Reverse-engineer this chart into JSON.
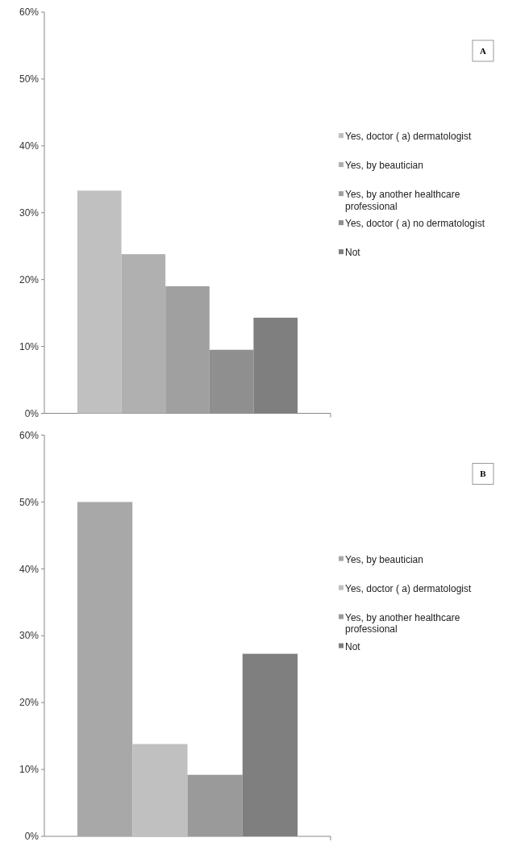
{
  "chart_data": [
    {
      "type": "bar",
      "annotations": [
        "A"
      ],
      "categories": [
        null
      ],
      "series": [
        {
          "name": "Yes, doctor ( a) dermatologist",
          "color": "#c0c0c0",
          "values": [
            33.3
          ]
        },
        {
          "name": "Yes, by beautician",
          "color": "#b0b0b0",
          "values": [
            23.8
          ]
        },
        {
          "name": "Yes, by another healthcare professional",
          "color": "#a0a0a0",
          "values": [
            19.0
          ]
        },
        {
          "name": "Yes, doctor ( a) no dermatologist",
          "color": "#8f8f8f",
          "values": [
            9.5
          ]
        },
        {
          "name": "Not",
          "color": "#7f7f7f",
          "values": [
            14.3
          ]
        }
      ],
      "ylim": [
        0,
        60
      ],
      "yticks": [
        {
          "value": 0,
          "label": "0%"
        },
        {
          "value": 10,
          "label": "10%"
        },
        {
          "value": 20,
          "label": "20%"
        },
        {
          "value": 30,
          "label": "30%"
        },
        {
          "value": 40,
          "label": "40%"
        },
        {
          "value": 50,
          "label": "50%"
        },
        {
          "value": 60,
          "label": "60%"
        }
      ],
      "legend": "right"
    },
    {
      "type": "bar",
      "annotations": [
        "B"
      ],
      "categories": [
        null
      ],
      "series": [
        {
          "name": "Yes, by beautician",
          "color": "#a8a8a8",
          "values": [
            50
          ]
        },
        {
          "name": "Yes, doctor ( a) dermatologist",
          "color": "#c0c0c0",
          "values": [
            13.8
          ]
        },
        {
          "name": "Yes, by another healthcare professional",
          "color": "#9a9a9a",
          "values": [
            9.2
          ]
        },
        {
          "name": "Not",
          "color": "#7f7f7f",
          "values": [
            27.3
          ]
        }
      ],
      "ylim": [
        0,
        60
      ],
      "yticks": [
        {
          "value": 0,
          "label": "0%"
        },
        {
          "value": 10,
          "label": "10%"
        },
        {
          "value": 20,
          "label": "20%"
        },
        {
          "value": 30,
          "label": "30%"
        },
        {
          "value": 40,
          "label": "40%"
        },
        {
          "value": 50,
          "label": "50%"
        },
        {
          "value": 60,
          "label": "60%"
        }
      ],
      "legend": "right"
    }
  ]
}
